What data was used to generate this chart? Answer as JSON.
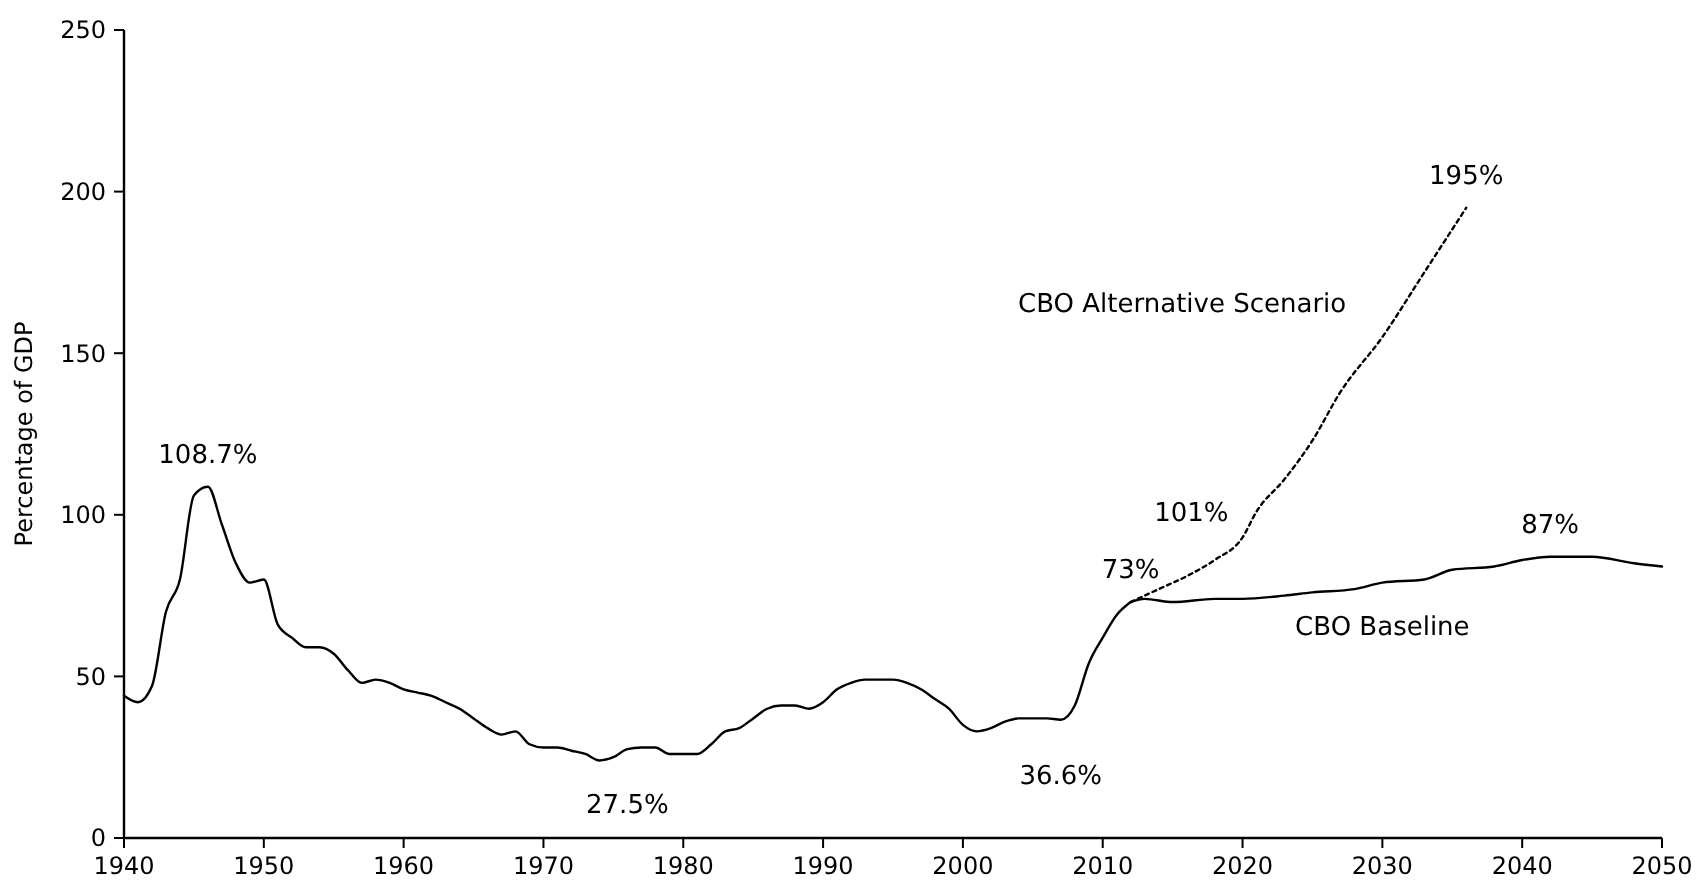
{
  "chart_data": {
    "type": "line",
    "ylabel": "Percentage of GDP",
    "xlim": [
      1940,
      2050
    ],
    "xticks": [
      1940,
      1950,
      1960,
      1970,
      1980,
      1990,
      2000,
      2010,
      2020,
      2030,
      2040,
      2050
    ],
    "ylim": [
      0,
      250
    ],
    "yticks": [
      0,
      50,
      100,
      150,
      200,
      250
    ],
    "grid": false,
    "series": [
      {
        "color": "#000000",
        "line_style": "solid",
        "x": [
          1940,
          1941,
          1942,
          1943,
          1944,
          1945,
          1946,
          1947,
          1948,
          1949,
          1950,
          1951,
          1952,
          1953,
          1954,
          1955,
          1956,
          1957,
          1958,
          1959,
          1960,
          1961,
          1962,
          1963,
          1964,
          1965,
          1966,
          1967,
          1968,
          1969,
          1970,
          1971,
          1972,
          1973,
          1974,
          1975,
          1976,
          1977,
          1978,
          1979,
          1980,
          1981,
          1982,
          1983,
          1984,
          1985,
          1986,
          1987,
          1988,
          1989,
          1990,
          1991,
          1992,
          1993,
          1994,
          1995,
          1996,
          1997,
          1998,
          1999,
          2000,
          2001,
          2002,
          2003,
          2004,
          2005,
          2006,
          2007,
          2008,
          2009,
          2010,
          2011,
          2012
        ],
        "values": [
          44,
          42,
          47,
          70,
          80,
          106,
          108.7,
          97,
          85,
          79,
          80,
          66,
          62,
          59,
          59,
          57,
          52,
          48,
          49,
          48,
          46,
          45,
          44,
          42,
          40,
          37,
          34,
          32,
          33,
          29,
          28,
          28,
          27,
          26,
          24,
          25,
          27.5,
          28,
          28,
          26,
          26,
          26,
          29,
          33,
          34,
          37,
          40,
          41,
          41,
          40,
          42,
          46,
          48,
          49,
          49,
          49,
          48,
          46,
          43,
          40,
          35,
          33,
          34,
          36,
          37,
          37,
          37,
          36.6,
          41,
          54,
          62,
          69,
          73
        ]
      },
      {
        "name": "CBO Baseline",
        "color": "#000000",
        "line_style": "solid",
        "x": [
          2012,
          2013,
          2015,
          2018,
          2020,
          2023,
          2025,
          2028,
          2030,
          2033,
          2035,
          2038,
          2040,
          2042,
          2045,
          2048,
          2050
        ],
        "values": [
          73,
          74,
          73,
          74,
          74,
          75,
          76,
          77,
          79,
          80,
          83,
          84,
          86,
          87,
          87,
          85,
          84
        ]
      },
      {
        "name": "CBO Alternative Scenario",
        "color": "#000000",
        "line_style": "dotted",
        "x": [
          2012,
          2014,
          2016,
          2018,
          2020,
          2021,
          2023,
          2025,
          2027,
          2030,
          2033,
          2036
        ],
        "values": [
          73,
          77,
          81,
          86,
          93,
          101,
          111,
          123,
          138,
          155,
          175,
          195
        ]
      }
    ],
    "annotations": [
      {
        "text": "108.7%",
        "x": 1946,
        "y": 108.7
      },
      {
        "text": "27.5%",
        "x": 1976,
        "y": 27.5
      },
      {
        "text": "36.6%",
        "x": 2007,
        "y": 36.6
      },
      {
        "text": "73%",
        "x": 2012,
        "y": 73
      },
      {
        "text": "101%",
        "x": 2021,
        "y": 101
      },
      {
        "text": "195%",
        "x": 2036,
        "y": 195
      },
      {
        "text": "87%",
        "x": 2042,
        "y": 87
      }
    ]
  }
}
